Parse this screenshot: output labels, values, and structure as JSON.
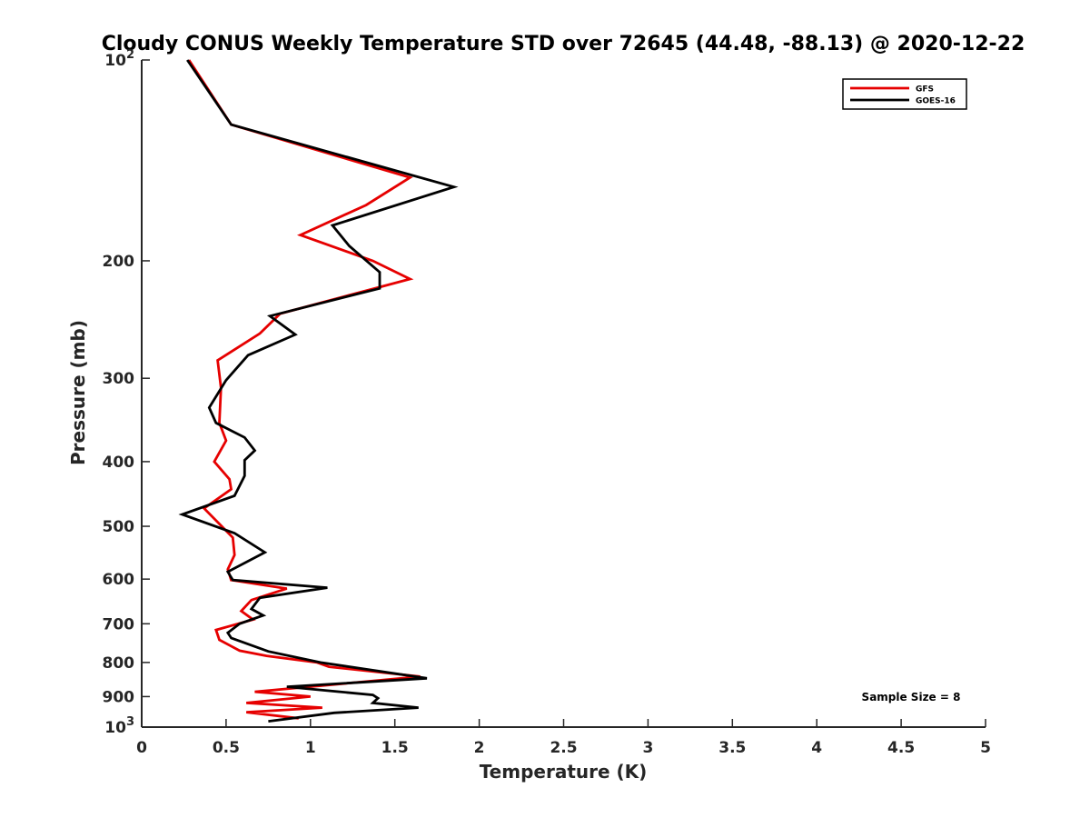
{
  "chart_data": {
    "type": "line",
    "title": "Cloudy CONUS Weekly Temperature STD over 72645 (44.48, -88.13) @ 2020-12-22",
    "xlabel": "Temperature (K)",
    "ylabel": "Pressure (mb)",
    "xlim": [
      0,
      5
    ],
    "ylim": [
      100,
      1000
    ],
    "y_scale": "log",
    "y_reversed": true,
    "x_ticks": [
      {
        "v": 0,
        "label": "0"
      },
      {
        "v": 0.5,
        "label": "0.5"
      },
      {
        "v": 1,
        "label": "1"
      },
      {
        "v": 1.5,
        "label": "1.5"
      },
      {
        "v": 2,
        "label": "2"
      },
      {
        "v": 2.5,
        "label": "2.5"
      },
      {
        "v": 3,
        "label": "3"
      },
      {
        "v": 3.5,
        "label": "3.5"
      },
      {
        "v": 4,
        "label": "4"
      },
      {
        "v": 4.5,
        "label": "4.5"
      },
      {
        "v": 5,
        "label": "5"
      }
    ],
    "y_ticks": [
      {
        "v": 100,
        "base": "10",
        "exp": "2"
      },
      {
        "v": 200,
        "label": "200"
      },
      {
        "v": 300,
        "label": "300"
      },
      {
        "v": 400,
        "label": "400"
      },
      {
        "v": 500,
        "label": "500"
      },
      {
        "v": 600,
        "label": "600"
      },
      {
        "v": 700,
        "label": "700"
      },
      {
        "v": 800,
        "label": "800"
      },
      {
        "v": 900,
        "label": "900"
      },
      {
        "v": 1000,
        "base": "10",
        "exp": "3"
      }
    ],
    "legend_position": "top-right",
    "annotation": "Sample Size = 8",
    "series": [
      {
        "name": "GFS",
        "color": "#e60000",
        "points": [
          [
            0.28,
            100
          ],
          [
            0.53,
            125
          ],
          [
            1.59,
            150
          ],
          [
            1.33,
            165
          ],
          [
            0.94,
            183
          ],
          [
            1.37,
            200
          ],
          [
            1.59,
            213
          ],
          [
            0.82,
            240
          ],
          [
            0.7,
            257
          ],
          [
            0.45,
            282
          ],
          [
            0.47,
            310
          ],
          [
            0.46,
            350
          ],
          [
            0.5,
            372
          ],
          [
            0.43,
            400
          ],
          [
            0.52,
            425
          ],
          [
            0.53,
            440
          ],
          [
            0.37,
            470
          ],
          [
            0.54,
            520
          ],
          [
            0.55,
            552
          ],
          [
            0.51,
            580
          ],
          [
            0.53,
            602
          ],
          [
            0.86,
            620
          ],
          [
            0.65,
            645
          ],
          [
            0.59,
            670
          ],
          [
            0.66,
            690
          ],
          [
            0.44,
            715
          ],
          [
            0.46,
            740
          ],
          [
            0.58,
            768
          ],
          [
            0.74,
            782
          ],
          [
            1.04,
            800
          ],
          [
            1.11,
            812
          ],
          [
            1.65,
            840
          ],
          [
            0.67,
            885
          ],
          [
            1.0,
            900
          ],
          [
            0.62,
            920
          ],
          [
            1.07,
            935
          ],
          [
            0.62,
            950
          ],
          [
            0.93,
            970
          ]
        ]
      },
      {
        "name": "GOES-16",
        "color": "#000000",
        "points": [
          [
            0.27,
            100
          ],
          [
            0.53,
            125
          ],
          [
            1.85,
            155
          ],
          [
            1.13,
            177
          ],
          [
            1.23,
            190
          ],
          [
            1.41,
            208
          ],
          [
            1.41,
            220
          ],
          [
            0.76,
            242
          ],
          [
            0.91,
            258
          ],
          [
            0.63,
            277
          ],
          [
            0.5,
            302
          ],
          [
            0.4,
            332
          ],
          [
            0.44,
            350
          ],
          [
            0.61,
            368
          ],
          [
            0.67,
            385
          ],
          [
            0.61,
            398
          ],
          [
            0.61,
            420
          ],
          [
            0.55,
            450
          ],
          [
            0.24,
            480
          ],
          [
            0.55,
            512
          ],
          [
            0.73,
            547
          ],
          [
            0.51,
            585
          ],
          [
            0.54,
            602
          ],
          [
            1.1,
            618
          ],
          [
            0.7,
            640
          ],
          [
            0.65,
            665
          ],
          [
            0.72,
            680
          ],
          [
            0.58,
            700
          ],
          [
            0.51,
            722
          ],
          [
            0.53,
            735
          ],
          [
            0.75,
            770
          ],
          [
            1.06,
            800
          ],
          [
            1.69,
            845
          ],
          [
            0.86,
            870
          ],
          [
            1.37,
            895
          ],
          [
            1.4,
            905
          ],
          [
            1.37,
            920
          ],
          [
            1.64,
            935
          ],
          [
            1.14,
            952
          ],
          [
            0.75,
            980
          ]
        ]
      }
    ]
  }
}
